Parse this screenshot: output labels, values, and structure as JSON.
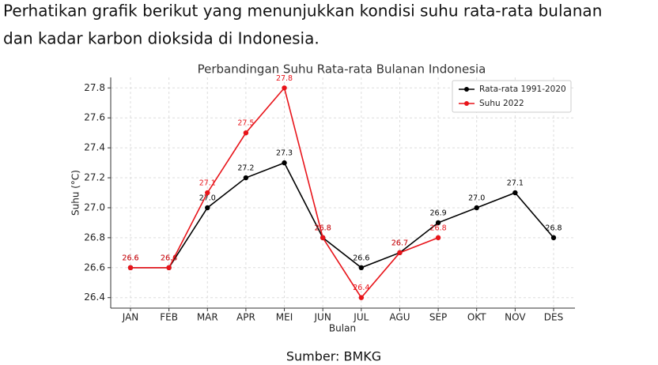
{
  "intro": [
    "Perhatikan grafik berikut yang menunjukkan kondisi suhu rata-rata bulanan",
    "dan kadar karbon dioksida di Indonesia."
  ],
  "chart_data": {
    "type": "line",
    "title": "Perbandingan Suhu Rata-rata Bulanan Indonesia",
    "x_label": "Bulan",
    "y_label": "Suhu (°C)",
    "categories": [
      "JAN",
      "FEB",
      "MAR",
      "APR",
      "MEI",
      "JUN",
      "JUL",
      "AGU",
      "SEP",
      "OKT",
      "NOV",
      "DES"
    ],
    "series": [
      {
        "name": "Rata-rata 1991-2020",
        "color": "#000000",
        "values": [
          26.6,
          26.6,
          27.0,
          27.2,
          27.3,
          26.8,
          26.6,
          26.7,
          26.9,
          27.0,
          27.1,
          26.8
        ],
        "value_labels": [
          "26.6",
          "26.6",
          "27.0",
          "27.2",
          "27.3",
          "26.8",
          "26.6",
          "26.7",
          "26.9",
          "27.0",
          "27.1",
          "26.8"
        ]
      },
      {
        "name": "Suhu 2022",
        "color": "#e8141a",
        "values": [
          26.6,
          26.6,
          27.1,
          27.5,
          27.8,
          26.8,
          26.4,
          26.7,
          26.8,
          null,
          null,
          null
        ],
        "value_labels": [
          "26.6",
          "26.6",
          "27.1",
          "27.5",
          "27.8",
          "26.8",
          "26.4",
          "26.7",
          "26.8",
          null,
          null,
          null
        ]
      }
    ],
    "ylim": [
      26.33,
      27.87
    ],
    "yticks": [
      26.4,
      26.6,
      26.8,
      {
        "value": 27.0,
        "label": "27.0"
      },
      27.2,
      27.4,
      27.6,
      27.8
    ],
    "grid": true,
    "legend": "upper right"
  },
  "source": "Sumber: BMKG"
}
